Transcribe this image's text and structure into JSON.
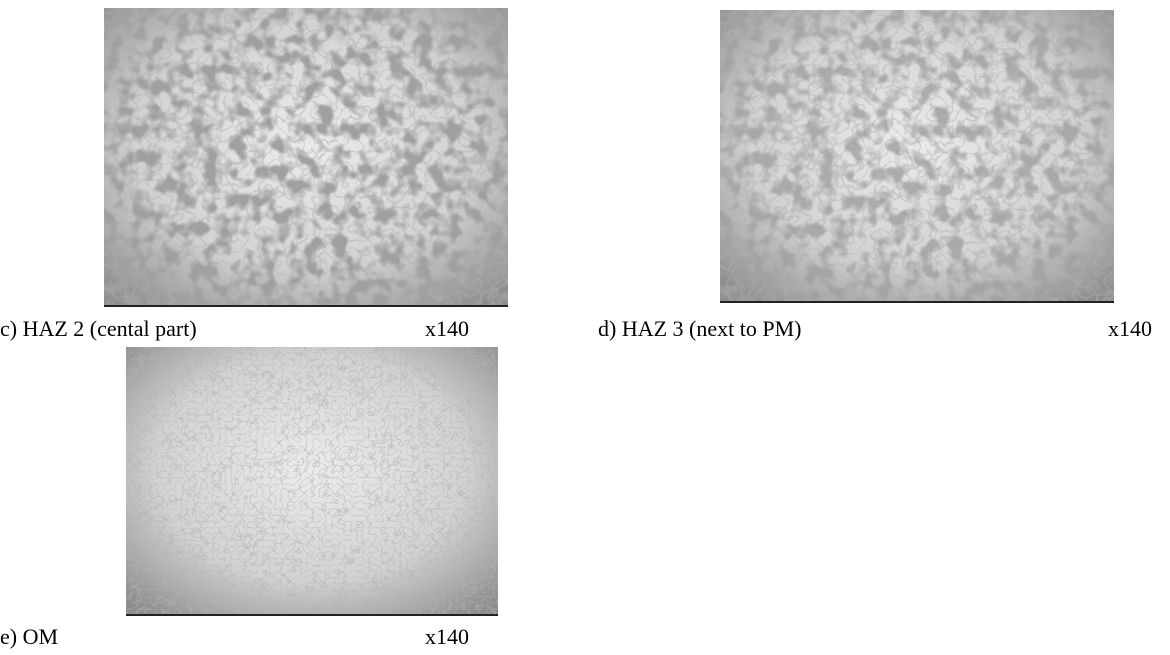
{
  "figures": [
    {
      "caption": "c) HAZ 2 (cental part)",
      "magnification": "x140"
    },
    {
      "caption": "d) HAZ 3 (next to PM)",
      "magnification": "x140"
    },
    {
      "caption": "e) OM",
      "magnification": "x140"
    }
  ]
}
